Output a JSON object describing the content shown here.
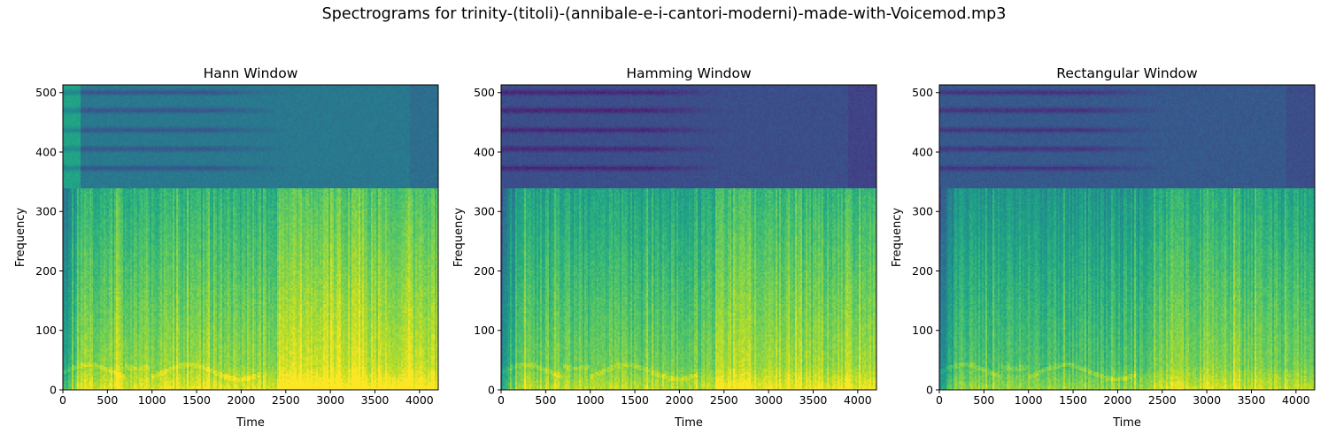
{
  "figure": {
    "suptitle": "Spectrograms for trinity-(titoli)-(annibale-e-i-cantori-moderni)-made-with-Voicemod.mp3"
  },
  "chart_data": [
    {
      "type": "heatmap",
      "title": "Hann Window",
      "xlabel": "Time",
      "ylabel": "Frequency",
      "xlim": [
        0,
        4210
      ],
      "ylim": [
        0,
        513
      ],
      "xticks": [
        0,
        500,
        1000,
        1500,
        2000,
        2500,
        3000,
        3500,
        4000
      ],
      "yticks": [
        0,
        100,
        200,
        300,
        400,
        500
      ],
      "colormap": "viridis",
      "cutoff_frequency": 338,
      "dark_bands_frequency": [
        373,
        405,
        437,
        470,
        500
      ],
      "notes": "High-energy (yellow) region below ~340, dark blue/teal above; brightest content after time ~2400"
    },
    {
      "type": "heatmap",
      "title": "Hamming Window",
      "xlabel": "Time",
      "ylabel": "Frequency",
      "xlim": [
        0,
        4210
      ],
      "ylim": [
        0,
        513
      ],
      "xticks": [
        0,
        500,
        1000,
        1500,
        2000,
        2500,
        3000,
        3500,
        4000
      ],
      "yticks": [
        0,
        100,
        200,
        300,
        400,
        500
      ],
      "colormap": "viridis",
      "cutoff_frequency": 338,
      "dark_bands_frequency": [
        373,
        405,
        437,
        470,
        500
      ],
      "notes": "Similar to Hann with slightly lower energy and darker upper region"
    },
    {
      "type": "heatmap",
      "title": "Rectangular Window",
      "xlabel": "Time",
      "ylabel": "Frequency",
      "xlim": [
        0,
        4210
      ],
      "ylim": [
        0,
        513
      ],
      "xticks": [
        0,
        500,
        1000,
        1500,
        2000,
        2500,
        3000,
        3500,
        4000
      ],
      "yticks": [
        0,
        100,
        200,
        300,
        400,
        500
      ],
      "colormap": "viridis",
      "cutoff_frequency": 338,
      "dark_bands_frequency": [
        373,
        405,
        437,
        470,
        500
      ],
      "notes": "Greener overall with less contrast in lower band"
    }
  ]
}
